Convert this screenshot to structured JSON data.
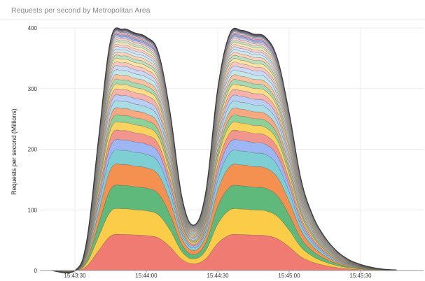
{
  "chart_title": "Requests per second by Metropolitan Area",
  "chart_data": {
    "type": "area",
    "stacked": true,
    "title": "Requests per second by Metropolitan Area",
    "xlabel": "",
    "ylabel": "Requests per second (Millions)",
    "ylim": [
      0,
      400
    ],
    "y_ticks": [
      0,
      100,
      200,
      300,
      400
    ],
    "x_tick_labels": [
      "15:43:30",
      "15:44:00",
      "15:44:30",
      "15:45:00",
      "15:45:30"
    ],
    "x": [
      "15:43:20",
      "15:43:30",
      "15:43:35",
      "15:43:40",
      "15:43:45",
      "15:43:50",
      "15:43:55",
      "15:44:00",
      "15:44:05",
      "15:44:10",
      "15:44:15",
      "15:44:20",
      "15:44:25",
      "15:44:30",
      "15:44:35",
      "15:44:40",
      "15:44:45",
      "15:44:50",
      "15:44:55",
      "15:45:00",
      "15:45:05",
      "15:45:10",
      "15:45:15",
      "15:45:20",
      "15:45:25",
      "15:45:30",
      "15:45:35",
      "15:45:40",
      "15:45:45"
    ],
    "total": [
      0,
      0,
      50,
      220,
      380,
      398,
      392,
      385,
      360,
      260,
      120,
      75,
      130,
      300,
      390,
      396,
      390,
      385,
      350,
      260,
      150,
      90,
      55,
      32,
      18,
      10,
      5,
      2,
      1
    ],
    "series_colors": [
      "#ef7b72",
      "#fbcc47",
      "#5fb97a",
      "#f59150",
      "#7ecfd3",
      "#9db7f5",
      "#f0968e",
      "#fad35f",
      "#8ed09a",
      "#f8a97f",
      "#a9dde3",
      "#b9cdf5",
      "#f5b3ac",
      "#fbdd8a",
      "#a7d9b0",
      "#fac2a0",
      "#c4e7ea",
      "#cbd9f7",
      "#f8c7c2",
      "#fce4a6",
      "#b9e0bf",
      "#fbd3ba",
      "#d1eaec",
      "#d6e1f8",
      "#f9d1cc",
      "#fde9b8",
      "#c8e6cd",
      "#fcdcc8",
      "#d8c8e8",
      "#8fb4e8",
      "#e6a0c4",
      "#c8c8c8",
      "#b0b0b0",
      "#7a6a9a",
      "#555555"
    ],
    "series_shares": [
      0.155,
      0.11,
      0.1,
      0.09,
      0.06,
      0.045,
      0.04,
      0.035,
      0.03,
      0.03,
      0.03,
      0.025,
      0.025,
      0.022,
      0.02,
      0.02,
      0.02,
      0.018,
      0.016,
      0.015,
      0.014,
      0.013,
      0.012,
      0.011,
      0.01,
      0.01,
      0.009,
      0.008,
      0.008,
      0.007,
      0.006,
      0.006,
      0.005,
      0.005,
      0.005
    ]
  }
}
